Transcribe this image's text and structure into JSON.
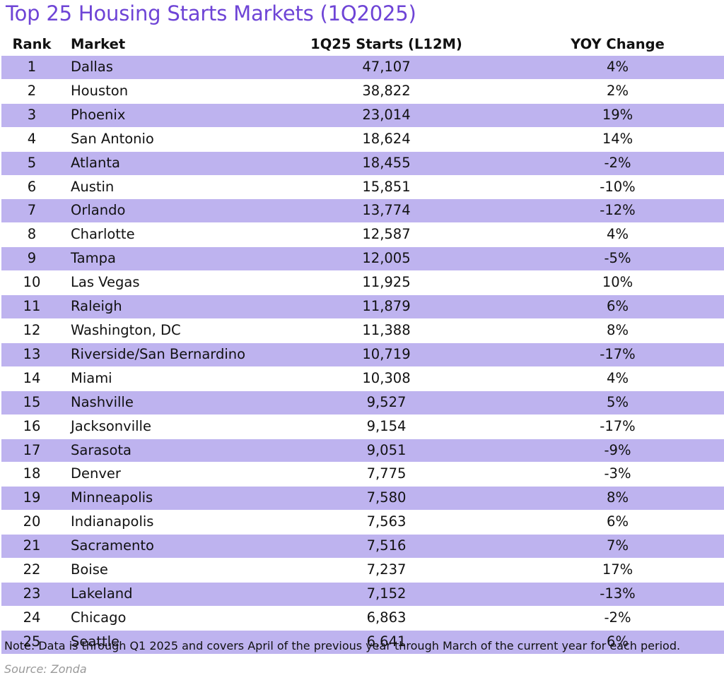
{
  "chart_data": {
    "type": "table",
    "title": "Top 25 Housing Starts Markets (1Q2025)",
    "columns": [
      "Rank",
      "Market",
      "1Q25 Starts (L12M)",
      "YOY Change"
    ],
    "rows": [
      {
        "rank": "1",
        "market": "Dallas",
        "starts": "47,107",
        "yoy": "4%"
      },
      {
        "rank": "2",
        "market": "Houston",
        "starts": "38,822",
        "yoy": "2%"
      },
      {
        "rank": "3",
        "market": "Phoenix",
        "starts": "23,014",
        "yoy": "19%"
      },
      {
        "rank": "4",
        "market": "San Antonio",
        "starts": "18,624",
        "yoy": "14%"
      },
      {
        "rank": "5",
        "market": "Atlanta",
        "starts": "18,455",
        "yoy": "-2%"
      },
      {
        "rank": "6",
        "market": "Austin",
        "starts": "15,851",
        "yoy": "-10%"
      },
      {
        "rank": "7",
        "market": "Orlando",
        "starts": "13,774",
        "yoy": "-12%"
      },
      {
        "rank": "8",
        "market": "Charlotte",
        "starts": "12,587",
        "yoy": "4%"
      },
      {
        "rank": "9",
        "market": "Tampa",
        "starts": "12,005",
        "yoy": "-5%"
      },
      {
        "rank": "10",
        "market": "Las Vegas",
        "starts": "11,925",
        "yoy": "10%"
      },
      {
        "rank": "11",
        "market": "Raleigh",
        "starts": "11,879",
        "yoy": "6%"
      },
      {
        "rank": "12",
        "market": "Washington, DC",
        "starts": "11,388",
        "yoy": "8%"
      },
      {
        "rank": "13",
        "market": "Riverside/San Bernardino",
        "starts": "10,719",
        "yoy": "-17%"
      },
      {
        "rank": "14",
        "market": "Miami",
        "starts": "10,308",
        "yoy": "4%"
      },
      {
        "rank": "15",
        "market": "Nashville",
        "starts": "9,527",
        "yoy": "5%"
      },
      {
        "rank": "16",
        "market": "Jacksonville",
        "starts": "9,154",
        "yoy": "-17%"
      },
      {
        "rank": "17",
        "market": "Sarasota",
        "starts": "9,051",
        "yoy": "-9%"
      },
      {
        "rank": "18",
        "market": "Denver",
        "starts": "7,775",
        "yoy": "-3%"
      },
      {
        "rank": "19",
        "market": "Minneapolis",
        "starts": "7,580",
        "yoy": "8%"
      },
      {
        "rank": "20",
        "market": "Indianapolis",
        "starts": "7,563",
        "yoy": "6%"
      },
      {
        "rank": "21",
        "market": "Sacramento",
        "starts": "7,516",
        "yoy": "7%"
      },
      {
        "rank": "22",
        "market": "Boise",
        "starts": "7,237",
        "yoy": "17%"
      },
      {
        "rank": "23",
        "market": "Lakeland",
        "starts": "7,152",
        "yoy": "-13%"
      },
      {
        "rank": "24",
        "market": "Chicago",
        "starts": "6,863",
        "yoy": "-2%"
      },
      {
        "rank": "25",
        "market": "Seattle",
        "starts": "6,641",
        "yoy": "6%"
      }
    ],
    "note": "Note: Data is through Q1 2025 and covers April of the previous year through March of the current year for each period.",
    "source": "Source: Zonda"
  },
  "colors": {
    "title": "#6E44D6",
    "band": "#BEB3EF",
    "source": "#9a9a9a"
  }
}
